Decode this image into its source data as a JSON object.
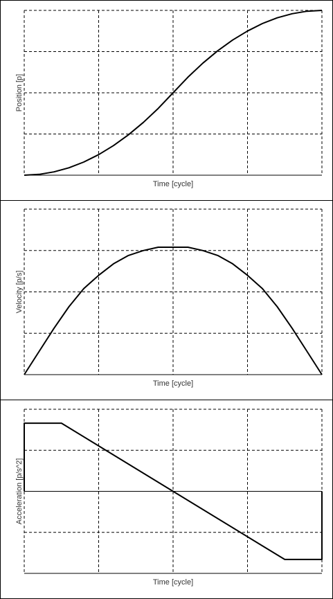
{
  "charts": [
    {
      "chart_data": {
        "type": "line",
        "xlabel": "Time [cycle]",
        "ylabel": "Position [p]",
        "xlim": [
          0,
          1
        ],
        "ylim": [
          0,
          1
        ],
        "grid": true,
        "x": [
          0,
          0.05,
          0.1,
          0.15,
          0.2,
          0.25,
          0.3,
          0.35,
          0.4,
          0.45,
          0.5,
          0.55,
          0.6,
          0.65,
          0.7,
          0.75,
          0.8,
          0.85,
          0.9,
          0.95,
          1.0
        ],
        "series": [
          {
            "values": [
              0,
              0.005,
              0.02,
              0.045,
              0.08,
              0.125,
              0.18,
              0.245,
              0.32,
              0.405,
              0.5,
              0.595,
              0.68,
              0.755,
              0.82,
              0.875,
              0.92,
              0.955,
              0.98,
              0.995,
              1.0
            ]
          }
        ]
      }
    },
    {
      "chart_data": {
        "type": "line",
        "xlabel": "Time [cycle]",
        "ylabel": "Velocity [p/s]",
        "xlim": [
          0,
          1
        ],
        "ylim": [
          0,
          1
        ],
        "grid": true,
        "x": [
          0,
          0.05,
          0.1,
          0.15,
          0.2,
          0.25,
          0.3,
          0.35,
          0.4,
          0.45,
          0.5,
          0.55,
          0.6,
          0.65,
          0.7,
          0.75,
          0.8,
          0.85,
          0.9,
          0.95,
          1.0
        ],
        "series": [
          {
            "values": [
              0,
              0.14,
              0.28,
              0.41,
              0.52,
              0.6,
              0.67,
              0.72,
              0.75,
              0.77,
              0.77,
              0.77,
              0.75,
              0.72,
              0.67,
              0.6,
              0.52,
              0.41,
              0.28,
              0.14,
              0
            ]
          }
        ]
      }
    },
    {
      "chart_data": {
        "type": "line",
        "xlabel": "Time [cycle]",
        "ylabel": "Acceleration [p/s^2]",
        "xlim": [
          0,
          1
        ],
        "ylim": [
          -1,
          1
        ],
        "grid": true,
        "zero_line": true,
        "x": [
          0,
          0,
          0.125,
          0.875,
          1.0,
          1.0
        ],
        "series": [
          {
            "values": [
              0,
              0.83,
              0.83,
              -0.83,
              -0.83,
              0
            ]
          }
        ]
      }
    }
  ]
}
